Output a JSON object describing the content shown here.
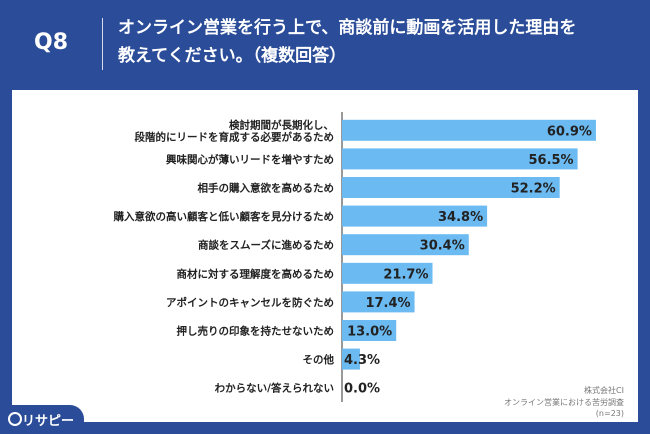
{
  "header": {
    "question_no": "Q8",
    "title_line1": "オンライン営業を行う上で、商談前に動画を活用した理由を",
    "title_line2": "教えてください。（複数回答）"
  },
  "source": {
    "company": "株式会社CI",
    "survey": "オンライン営業における苦労調査",
    "n": "(n=23)"
  },
  "logo": {
    "text": "リサピー"
  },
  "colors": {
    "bar": "#6bbaf2",
    "header_bg": "#2b4d99",
    "text": "#222222"
  },
  "chart_data": {
    "type": "bar",
    "orientation": "horizontal",
    "categories": [
      [
        "検討期間が長期化し、",
        "段階的にリードを育成する必要があるため"
      ],
      [
        "興味関心が薄いリードを増やすため"
      ],
      [
        "相手の購入意欲を高めるため"
      ],
      [
        "購入意欲の高い顧客と低い顧客を見分けるため"
      ],
      [
        "商談をスムーズに進めるため"
      ],
      [
        "商材に対する理解度を高めるため"
      ],
      [
        "アポイントのキャンセルを防ぐため"
      ],
      [
        "押し売りの印象を持たせないため"
      ],
      [
        "その他"
      ],
      [
        "わからない/答えられない"
      ]
    ],
    "values": [
      60.9,
      56.5,
      52.2,
      34.8,
      30.4,
      21.7,
      17.4,
      13.0,
      4.3,
      0.0
    ],
    "value_labels": [
      "60.9%",
      "56.5%",
      "52.2%",
      "34.8%",
      "30.4%",
      "21.7%",
      "17.4%",
      "13.0%",
      "4.3%",
      "0.0%"
    ],
    "xlim": [
      0,
      100
    ]
  }
}
